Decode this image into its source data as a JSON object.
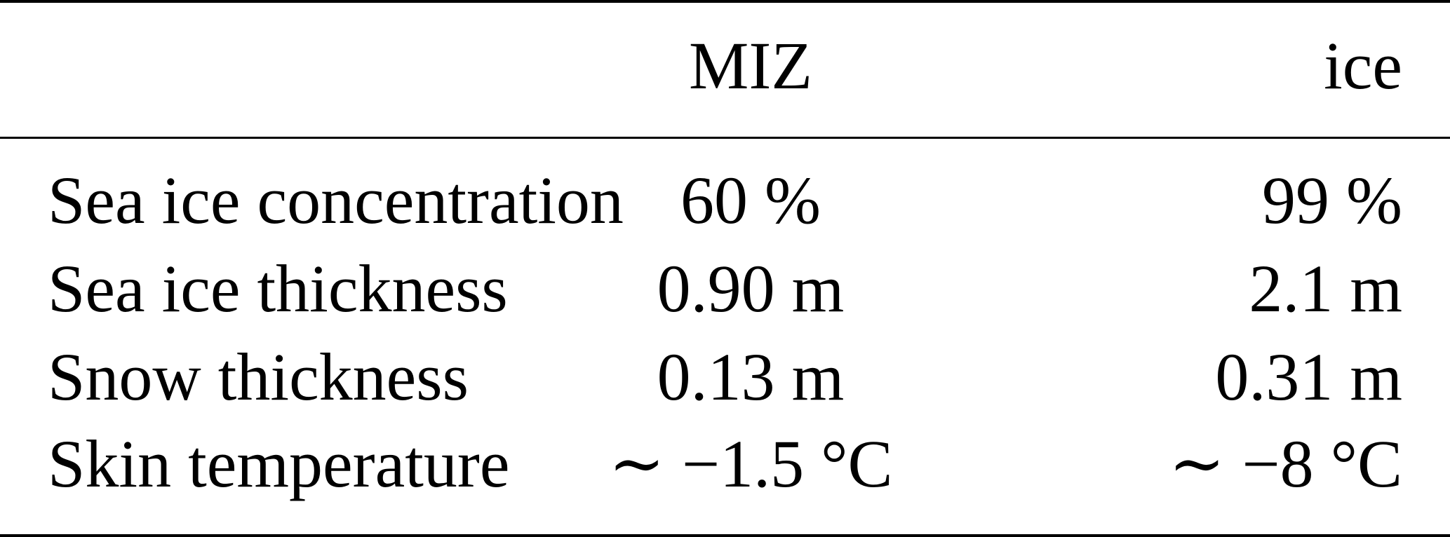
{
  "table": {
    "columns": [
      "",
      "MIZ",
      "ice"
    ],
    "rows": [
      {
        "label": "Sea ice concentration",
        "miz": "60 %",
        "ice": "99 %"
      },
      {
        "label": "Sea ice thickness",
        "miz": "0.90 m",
        "ice": "2.1 m"
      },
      {
        "label": "Snow thickness",
        "miz": "0.13 m",
        "ice": "0.31 m"
      },
      {
        "label": "Skin temperature",
        "miz": "∼ −1.5 °C",
        "ice": "∼ −8 °C"
      }
    ]
  }
}
